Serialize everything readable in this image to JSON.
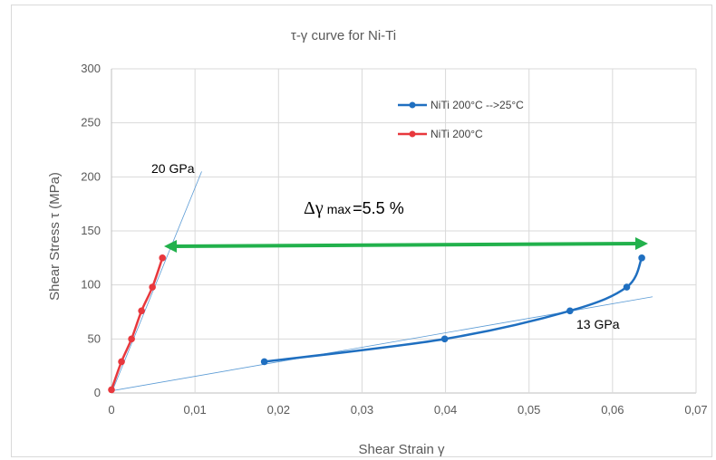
{
  "chart_data": {
    "type": "scatter",
    "title": "τ-γ curve for Ni-Ti",
    "xlabel": "Shear Strain γ",
    "ylabel": "Shear Stress τ (MPa)",
    "xlim": [
      0,
      0.07
    ],
    "ylim": [
      0,
      300
    ],
    "x_ticks": [
      "0",
      "0,01",
      "0,02",
      "0,03",
      "0,04",
      "0,05",
      "0,06",
      "0,07"
    ],
    "y_ticks": [
      "0",
      "50",
      "100",
      "150",
      "200",
      "250",
      "300"
    ],
    "grid": true,
    "legend_position": "top-right",
    "series": [
      {
        "name": "NiTi 200°C -->25°C",
        "color": "#1f6fc0",
        "x": [
          0.0183,
          0.0399,
          0.0549,
          0.0617,
          0.0635
        ],
        "y": [
          29,
          50,
          76,
          98,
          125
        ]
      },
      {
        "name": "NiTi 200°C",
        "color": "#e8383d",
        "x": [
          0,
          0.0012,
          0.0024,
          0.0036,
          0.0049,
          0.0061
        ],
        "y": [
          3,
          29,
          50,
          76,
          98,
          125
        ]
      }
    ],
    "annotations": {
      "modulus_high": "20 GPa",
      "modulus_low": "13 GPa",
      "delta_main": "Δγ",
      "delta_sub": "max",
      "delta_value": "=5.5 %"
    }
  }
}
